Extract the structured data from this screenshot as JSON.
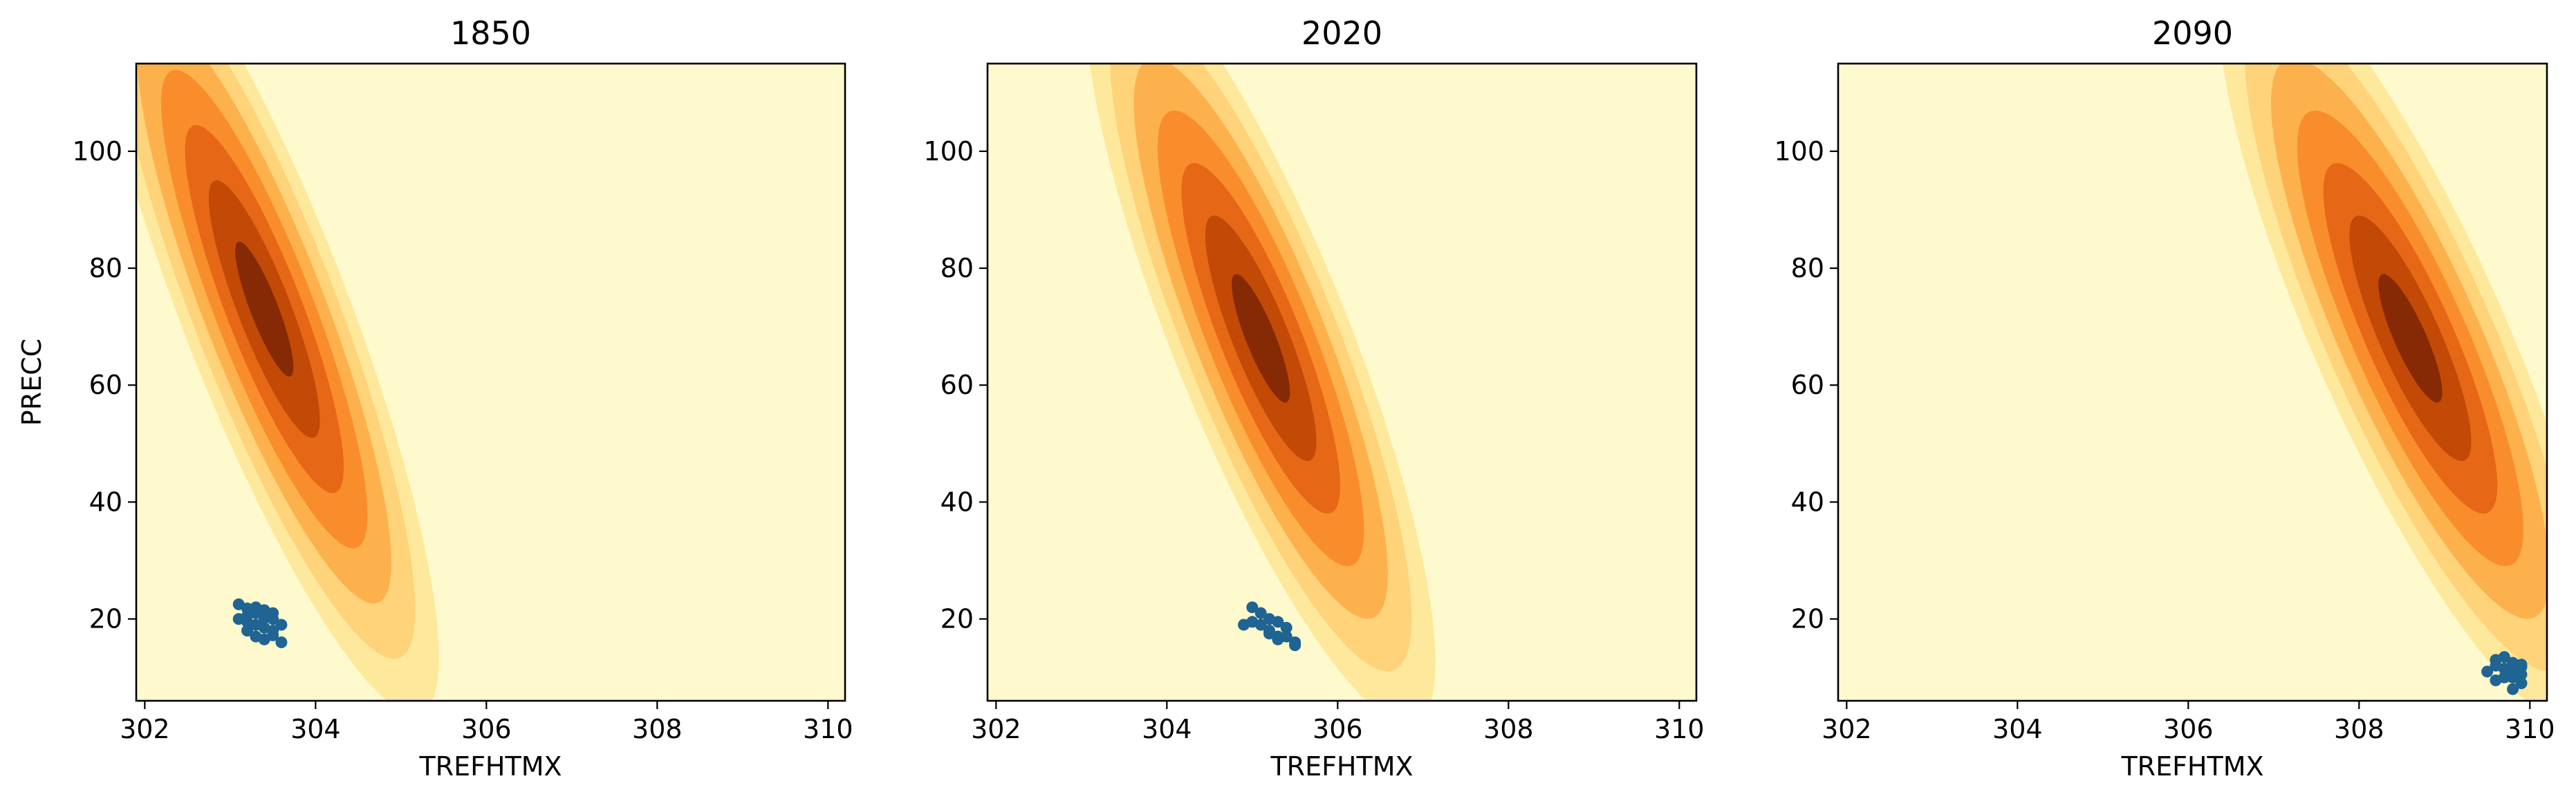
{
  "chart_data": [
    {
      "type": "scatter",
      "subtype": "kde-contour-with-scatter",
      "title": "1850",
      "xlabel": "TREFHTMX",
      "ylabel": "PRECC",
      "xlim": [
        301.9,
        310.2
      ],
      "ylim": [
        6,
        115
      ],
      "xticks": [
        302,
        304,
        306,
        308,
        310
      ],
      "yticks": [
        20,
        40,
        60,
        80,
        100
      ],
      "grid": false,
      "kde": {
        "center": [
          303.4,
          73
        ],
        "sx": 0.62,
        "sy": 21,
        "corr": -0.86
      },
      "points": [
        [
          303.2,
          19.5
        ],
        [
          303.3,
          21
        ],
        [
          303.1,
          22.5
        ],
        [
          303.4,
          18.5
        ],
        [
          303.5,
          20
        ],
        [
          303.6,
          16
        ],
        [
          303.3,
          17
        ],
        [
          303.2,
          20.5
        ],
        [
          303.4,
          21.5
        ],
        [
          303.5,
          18
        ],
        [
          303.3,
          19
        ],
        [
          303.2,
          18
        ],
        [
          303.4,
          16.5
        ],
        [
          303.5,
          21
        ],
        [
          303.1,
          20
        ],
        [
          303.3,
          22
        ],
        [
          303.6,
          19
        ],
        [
          303.4,
          20.2
        ],
        [
          303.2,
          21.8
        ],
        [
          303.5,
          17.2
        ]
      ]
    },
    {
      "type": "scatter",
      "subtype": "kde-contour-with-scatter",
      "title": "2020",
      "xlabel": "TREFHTMX",
      "ylabel": "",
      "xlim": [
        301.9,
        310.2
      ],
      "ylim": [
        6,
        115
      ],
      "xticks": [
        302,
        304,
        306,
        308,
        310
      ],
      "yticks": [
        20,
        40,
        60,
        80,
        100
      ],
      "grid": false,
      "kde": {
        "center": [
          305.1,
          68
        ],
        "sx": 0.62,
        "sy": 20,
        "corr": -0.84
      },
      "points": [
        [
          305.1,
          19
        ],
        [
          305.2,
          18
        ],
        [
          305.0,
          22
        ],
        [
          305.3,
          17
        ],
        [
          305.4,
          18.5
        ],
        [
          305.5,
          15.5
        ],
        [
          305.2,
          20
        ],
        [
          305.0,
          19.5
        ],
        [
          305.3,
          16.5
        ],
        [
          305.1,
          21
        ],
        [
          305.4,
          17
        ],
        [
          305.2,
          17.5
        ],
        [
          304.9,
          19
        ],
        [
          305.3,
          19.5
        ],
        [
          305.5,
          16
        ]
      ]
    },
    {
      "type": "scatter",
      "subtype": "kde-contour-with-scatter",
      "title": "2090",
      "xlabel": "TREFHTMX",
      "ylabel": "",
      "xlim": [
        301.9,
        310.2
      ],
      "ylim": [
        6,
        115
      ],
      "xticks": [
        302,
        304,
        306,
        308,
        310
      ],
      "yticks": [
        20,
        40,
        60,
        80,
        100
      ],
      "grid": false,
      "kde": {
        "center": [
          308.6,
          68
        ],
        "sx": 0.68,
        "sy": 20,
        "corr": -0.84
      },
      "points": [
        [
          309.6,
          12
        ],
        [
          309.7,
          10
        ],
        [
          309.8,
          11
        ],
        [
          309.9,
          9
        ],
        [
          309.6,
          13
        ],
        [
          309.8,
          12.5
        ],
        [
          309.7,
          11.5
        ],
        [
          309.9,
          10.5
        ],
        [
          309.5,
          11
        ],
        [
          309.8,
          8
        ],
        [
          309.9,
          11.8
        ],
        [
          309.6,
          9.5
        ],
        [
          309.7,
          13.5
        ],
        [
          309.8,
          10
        ],
        [
          309.9,
          12.2
        ]
      ]
    }
  ],
  "colors": {
    "levels": [
      "#fffacd",
      "#fee89c",
      "#fed379",
      "#fdb14c",
      "#f98d2c",
      "#e66816",
      "#c24a06",
      "#852a05"
    ],
    "points": "#1f6492"
  }
}
